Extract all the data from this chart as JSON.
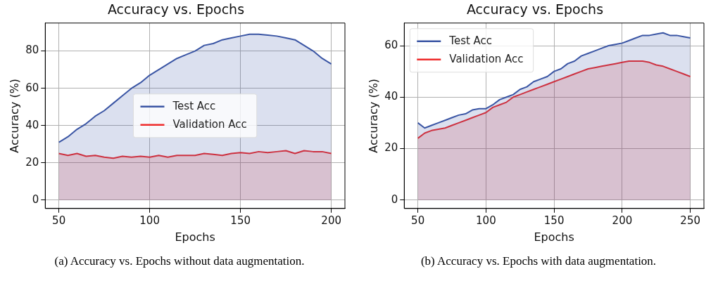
{
  "chart_data": [
    {
      "type": "area",
      "title": "Accuracy vs. Epochs",
      "xlabel": "Epochs",
      "ylabel": "Accuracy (%)",
      "annotations": [
        "(a) Accuracy vs. Epochs without data augmentation."
      ],
      "x": [
        50,
        55,
        60,
        65,
        70,
        75,
        80,
        85,
        90,
        95,
        100,
        105,
        110,
        115,
        120,
        125,
        130,
        135,
        140,
        145,
        150,
        155,
        160,
        165,
        170,
        175,
        180,
        185,
        190,
        195,
        200
      ],
      "series": [
        {
          "name": "Test Acc",
          "color": "#3a55a4",
          "values": [
            31,
            34,
            38,
            41,
            45,
            48,
            52,
            56,
            60,
            63,
            67,
            70,
            73,
            76,
            78,
            80,
            83,
            84,
            86,
            87,
            88,
            89,
            89,
            88.5,
            88,
            87,
            86,
            83,
            80,
            76,
            73
          ]
        },
        {
          "name": "Validation Acc",
          "color": "#ee2a2a",
          "values": [
            25,
            24,
            25,
            23.5,
            24,
            23,
            22.5,
            23.5,
            23,
            23.5,
            23,
            24,
            23,
            24,
            24,
            24,
            25,
            24.5,
            24,
            25,
            25.5,
            25,
            26,
            25.5,
            26,
            26.5,
            25,
            26.5,
            26,
            26,
            25
          ]
        }
      ],
      "xlim": [
        42.5,
        207.5
      ],
      "xticks": [
        50,
        100,
        150,
        200
      ],
      "ylim": [
        -4.5,
        95
      ],
      "yticks": [
        0,
        20,
        40,
        60,
        80
      ],
      "grid": true,
      "legend": "center"
    },
    {
      "type": "area",
      "title": "Accuracy vs. Epochs",
      "xlabel": "Epochs",
      "ylabel": "Accuracy (%)",
      "annotations": [
        "(b) Accuracy vs. Epochs with data augmentation."
      ],
      "x": [
        50,
        55,
        60,
        65,
        70,
        75,
        80,
        85,
        90,
        95,
        100,
        105,
        110,
        115,
        120,
        125,
        130,
        135,
        140,
        145,
        150,
        155,
        160,
        165,
        170,
        175,
        180,
        185,
        190,
        195,
        200,
        205,
        210,
        215,
        220,
        225,
        230,
        235,
        240,
        245,
        250
      ],
      "series": [
        {
          "name": "Test Acc",
          "color": "#3a55a4",
          "values": [
            30,
            28,
            29,
            30,
            31,
            32,
            33,
            33.5,
            35,
            35.5,
            35.5,
            37,
            39,
            40,
            41,
            43,
            44,
            46,
            47,
            48,
            50,
            51,
            53,
            54,
            56,
            57,
            58,
            59,
            60,
            60.5,
            61,
            62,
            63,
            64,
            64,
            64.5,
            65,
            64,
            64,
            63.5,
            63
          ]
        },
        {
          "name": "Validation Acc",
          "color": "#ee2a2a",
          "values": [
            24,
            26,
            27,
            27.5,
            28,
            29,
            30,
            31,
            32,
            33,
            34,
            36,
            37,
            38,
            40,
            41,
            42,
            43,
            44,
            45,
            46,
            47,
            48,
            49,
            50,
            51,
            51.5,
            52,
            52.5,
            53,
            53.5,
            54,
            54,
            54,
            53.5,
            52.5,
            52,
            51,
            50,
            49,
            48
          ]
        }
      ],
      "xlim": [
        40,
        260
      ],
      "xticks": [
        50,
        100,
        150,
        200,
        250
      ],
      "ylim": [
        -3.3,
        68.8
      ],
      "yticks": [
        0,
        20,
        40,
        60
      ],
      "grid": true,
      "legend": "top left"
    }
  ]
}
